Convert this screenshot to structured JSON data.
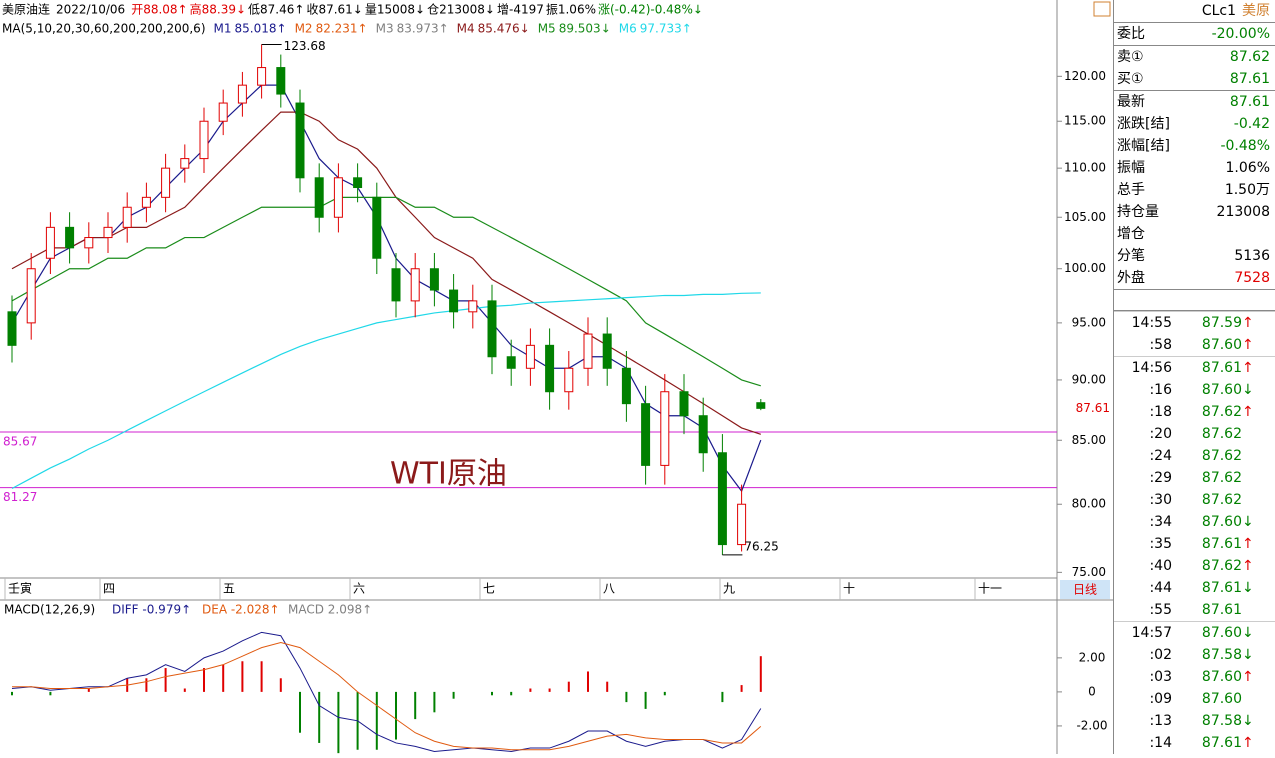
{
  "chart_data": {
    "type": "candlestick",
    "header": [
      {
        "text": "美原油连",
        "color": "#000000"
      },
      {
        "text": "2022/10/06",
        "color": "#000000"
      },
      {
        "text": "开88.08↑",
        "color": "#e00000"
      },
      {
        "text": "高88.39↓",
        "color": "#e00000"
      },
      {
        "text": "低87.46↑",
        "color": "#000000"
      },
      {
        "text": "收87.61↓",
        "color": "#000000"
      },
      {
        "text": "量15008↓",
        "color": "#000000"
      },
      {
        "text": "仓213008↓",
        "color": "#000000"
      },
      {
        "text": "增-4197",
        "color": "#000000"
      },
      {
        "text": "振1.06%",
        "color": "#000000"
      },
      {
        "text": "涨(-0.42)-0.48%↓",
        "color": "#008000"
      }
    ],
    "ma_label": "MA(5,10,20,30,60,200,200,200,6)",
    "ma_series": [
      {
        "name": "M1",
        "legend_value": "85.018↑",
        "color": "#1a1a8c",
        "values": [
          95,
          98,
          101,
          102,
          103,
          103,
          105,
          106,
          108,
          110,
          112,
          115,
          117,
          119,
          119,
          115,
          111,
          109,
          108,
          105,
          101,
          99,
          98,
          97,
          97,
          95,
          93,
          92,
          91,
          91,
          92,
          92,
          91,
          88,
          87,
          87,
          86,
          83,
          81,
          85.018
        ]
      },
      {
        "name": "M2",
        "legend_value": "82.231↑",
        "color": "#e05a10"
      },
      {
        "name": "M3",
        "legend_value": "83.973↑",
        "color": "#808080"
      },
      {
        "name": "M4",
        "legend_value": "85.476↓",
        "color": "#8b1a1a",
        "values": [
          100,
          101,
          102,
          102,
          103,
          103,
          104,
          104,
          105,
          106,
          108,
          110,
          112,
          114,
          116,
          116,
          115,
          113,
          112,
          110,
          107,
          105,
          103,
          102,
          101,
          99,
          98,
          97,
          96,
          95,
          94,
          93,
          92,
          91,
          90,
          89,
          88,
          87,
          86,
          85.476
        ]
      },
      {
        "name": "M5",
        "legend_value": "89.503↓",
        "color": "#1a8c1a",
        "values": [
          97,
          98,
          99,
          100,
          100,
          101,
          101,
          102,
          102,
          103,
          103,
          104,
          105,
          106,
          106,
          106,
          106,
          107,
          107,
          107,
          107,
          106,
          106,
          105,
          105,
          104,
          103,
          102,
          101,
          100,
          99,
          98,
          97,
          95,
          94,
          93,
          92,
          91,
          90,
          89.503
        ]
      },
      {
        "name": "M6",
        "legend_value": "97.733↑",
        "color": "#20d8e8",
        "values": [
          81.2,
          82,
          82.8,
          83.5,
          84.3,
          85,
          85.8,
          86.6,
          87.4,
          88.2,
          89,
          89.8,
          90.6,
          91.4,
          92.2,
          92.9,
          93.5,
          94,
          94.5,
          95,
          95.3,
          95.6,
          95.9,
          96.1,
          96.3,
          96.5,
          96.6,
          96.8,
          96.9,
          97,
          97.1,
          97.2,
          97.3,
          97.4,
          97.5,
          97.5,
          97.6,
          97.6,
          97.7,
          97.733
        ]
      }
    ],
    "open": [
      96,
      95,
      101,
      104,
      102,
      103,
      104,
      106,
      107,
      110,
      111,
      115,
      117,
      119,
      121,
      117,
      109,
      105,
      109,
      107,
      100,
      97,
      100,
      98,
      96,
      97,
      92,
      91,
      93,
      89,
      91,
      94,
      91,
      88,
      83,
      89,
      87,
      84,
      77,
      88.08
    ],
    "high": [
      97.5,
      101.5,
      105.5,
      105.5,
      104.5,
      105.5,
      107.5,
      108.5,
      111.5,
      112.5,
      116.5,
      118.5,
      120.5,
      123.68,
      122.5,
      118.5,
      110.5,
      110.5,
      110.5,
      108.5,
      101.5,
      101.5,
      101.5,
      99.5,
      98.5,
      98.5,
      93.5,
      94.5,
      94.5,
      92.5,
      95.5,
      95.5,
      92.5,
      89.5,
      90.5,
      90.5,
      88.5,
      85.5,
      81.5,
      88.39
    ],
    "low": [
      91.5,
      93.5,
      99.5,
      100.5,
      100.5,
      101.5,
      102.5,
      104.5,
      105.5,
      108.5,
      109.5,
      113.5,
      115.5,
      117.5,
      116.5,
      107.5,
      103.5,
      103.5,
      106.5,
      99.5,
      95.5,
      95.5,
      96.5,
      94.5,
      94.5,
      90.5,
      89.5,
      89.5,
      87.5,
      87.5,
      89.5,
      89.5,
      86.5,
      81.5,
      81.5,
      85.5,
      82.5,
      76.25,
      76.5,
      87.46
    ],
    "close": [
      93,
      100,
      104,
      102,
      103,
      104,
      106,
      107,
      110,
      111,
      115,
      117,
      119,
      121,
      118,
      109,
      105,
      109,
      108,
      101,
      97,
      100,
      98,
      96,
      97,
      92,
      91,
      93,
      89,
      91,
      94,
      91,
      88,
      83,
      89,
      87,
      84,
      77,
      80,
      87.61
    ],
    "up_color": "#e00000",
    "down_color": "#008000",
    "log_scale": true,
    "ylim": [
      74.6,
      129
    ],
    "yticks": [
      {
        "value": 120,
        "label": "120.00"
      },
      {
        "value": 115,
        "label": "115.00"
      },
      {
        "value": 110,
        "label": "110.00"
      },
      {
        "value": 105,
        "label": "105.00"
      },
      {
        "value": 100,
        "label": "100.00"
      },
      {
        "value": 95,
        "label": "95.00"
      },
      {
        "value": 90,
        "label": "90.00"
      },
      {
        "value": 85,
        "label": "85.00"
      },
      {
        "value": 80,
        "label": "80.00"
      },
      {
        "value": 75,
        "label": "75.00"
      }
    ],
    "x_axis_labels": [
      "壬寅",
      "四",
      "五",
      "六",
      "七",
      "八",
      "九",
      "十",
      "十一"
    ],
    "period_button": "日线",
    "high_mark": 123.68,
    "low_mark": 76.25,
    "last_price": 87.61,
    "levels": [
      85.67,
      81.27
    ],
    "level_color": "#d020d0",
    "annotation": "WTI原油",
    "macd": {
      "label": "MACD(12,26,9)",
      "diff_label": "DIFF -0.979↑",
      "dea_label": "DEA -2.028↑",
      "macd_label": "MACD 2.098↑",
      "ylim": [
        -3.65,
        5.4
      ],
      "yticks": [
        {
          "value": 2,
          "label": "2.00"
        },
        0,
        {
          "value": -2,
          "label": "-2.00"
        }
      ],
      "diff": [
        0.2,
        0.3,
        0.1,
        0.2,
        0.3,
        0.3,
        0.8,
        1.0,
        1.6,
        1.2,
        2.0,
        2.4,
        3.0,
        3.5,
        3.3,
        1.4,
        -0.8,
        -1.5,
        -1.7,
        -2.5,
        -3.0,
        -3.2,
        -3.5,
        -3.4,
        -3.3,
        -3.4,
        -3.5,
        -3.3,
        -3.3,
        -2.9,
        -2.3,
        -2.3,
        -2.9,
        -3.2,
        -2.9,
        -2.8,
        -2.8,
        -3.3,
        -2.8,
        -0.979
      ],
      "dea": [
        0.3,
        0.3,
        0.2,
        0.2,
        0.2,
        0.3,
        0.4,
        0.6,
        0.9,
        1.1,
        1.3,
        1.6,
        2.1,
        2.6,
        2.9,
        2.6,
        1.8,
        1.0,
        0.0,
        -0.8,
        -1.6,
        -2.4,
        -2.9,
        -3.2,
        -3.3,
        -3.3,
        -3.4,
        -3.4,
        -3.4,
        -3.2,
        -2.9,
        -2.6,
        -2.5,
        -2.7,
        -2.8,
        -2.8,
        -2.8,
        -3.0,
        -3.0,
        -2.028
      ],
      "hist": [
        -0.2,
        0,
        -0.2,
        0,
        0.2,
        0,
        0.8,
        0.8,
        1.4,
        0.2,
        1.4,
        1.6,
        1.8,
        1.8,
        0.8,
        -2.4,
        -3.0,
        -3.6,
        -3.4,
        -3.4,
        -2.8,
        -1.6,
        -1.2,
        -0.4,
        0,
        -0.2,
        -0.2,
        0.2,
        0.2,
        0.6,
        1.2,
        0.6,
        -0.6,
        -1.0,
        -0.2,
        0,
        0,
        -0.6,
        0.4,
        2.098
      ],
      "diff_color": "#1a1a8c",
      "dea_color": "#e05a10"
    }
  },
  "quote_panel": {
    "code": "CLc1",
    "name": "美原",
    "rows": [
      {
        "label": "委比",
        "value": "-20.00%",
        "color": "#008000"
      },
      {
        "label": "卖①",
        "value": "87.62",
        "color": "#008000"
      },
      {
        "label": "买①",
        "value": "87.61",
        "color": "#008000"
      },
      {
        "label": "最新",
        "value": "87.61",
        "color": "#008000"
      },
      {
        "label": "涨跌[结]",
        "value": "-0.42",
        "color": "#008000"
      },
      {
        "label": "涨幅[结]",
        "value": "-0.48%",
        "color": "#008000"
      },
      {
        "label": "振幅",
        "value": "1.06%",
        "color": "#000000"
      },
      {
        "label": "总手",
        "value": "1.50万",
        "color": "#000000"
      },
      {
        "label": "持仓量",
        "value": "213008",
        "color": "#000000"
      },
      {
        "label": "增仓"
      },
      {
        "label": "分笔",
        "value": "5136",
        "color": "#000000"
      },
      {
        "label": "外盘",
        "value": "7528",
        "color": "#e00000"
      }
    ],
    "ticks": [
      {
        "time": "14:55",
        "price": "87.59",
        "arrow": "↑"
      },
      {
        "time": ":58",
        "price": "87.60",
        "arrow": "↑"
      },
      {
        "time": "14:56",
        "price": "87.61",
        "arrow": "↑"
      },
      {
        "time": ":16",
        "price": "87.60",
        "arrow": "↓"
      },
      {
        "time": ":18",
        "price": "87.62",
        "arrow": "↑"
      },
      {
        "time": ":20",
        "price": "87.62"
      },
      {
        "time": ":24",
        "price": "87.62"
      },
      {
        "time": ":29",
        "price": "87.62"
      },
      {
        "time": ":30",
        "price": "87.62"
      },
      {
        "time": ":34",
        "price": "87.60",
        "arrow": "↓"
      },
      {
        "time": ":35",
        "price": "87.61",
        "arrow": "↑"
      },
      {
        "time": ":40",
        "price": "87.62",
        "arrow": "↑"
      },
      {
        "time": ":44",
        "price": "87.61",
        "arrow": "↓"
      },
      {
        "time": ":55",
        "price": "87.61"
      },
      {
        "time": "14:57",
        "price": "87.60",
        "arrow": "↓"
      },
      {
        "time": ":02",
        "price": "87.58",
        "arrow": "↓"
      },
      {
        "time": ":03",
        "price": "87.60",
        "arrow": "↑"
      },
      {
        "time": ":09",
        "price": "87.60"
      },
      {
        "time": ":13",
        "price": "87.58",
        "arrow": "↓"
      },
      {
        "time": ":14",
        "price": "87.61",
        "arrow": "↑"
      }
    ]
  }
}
